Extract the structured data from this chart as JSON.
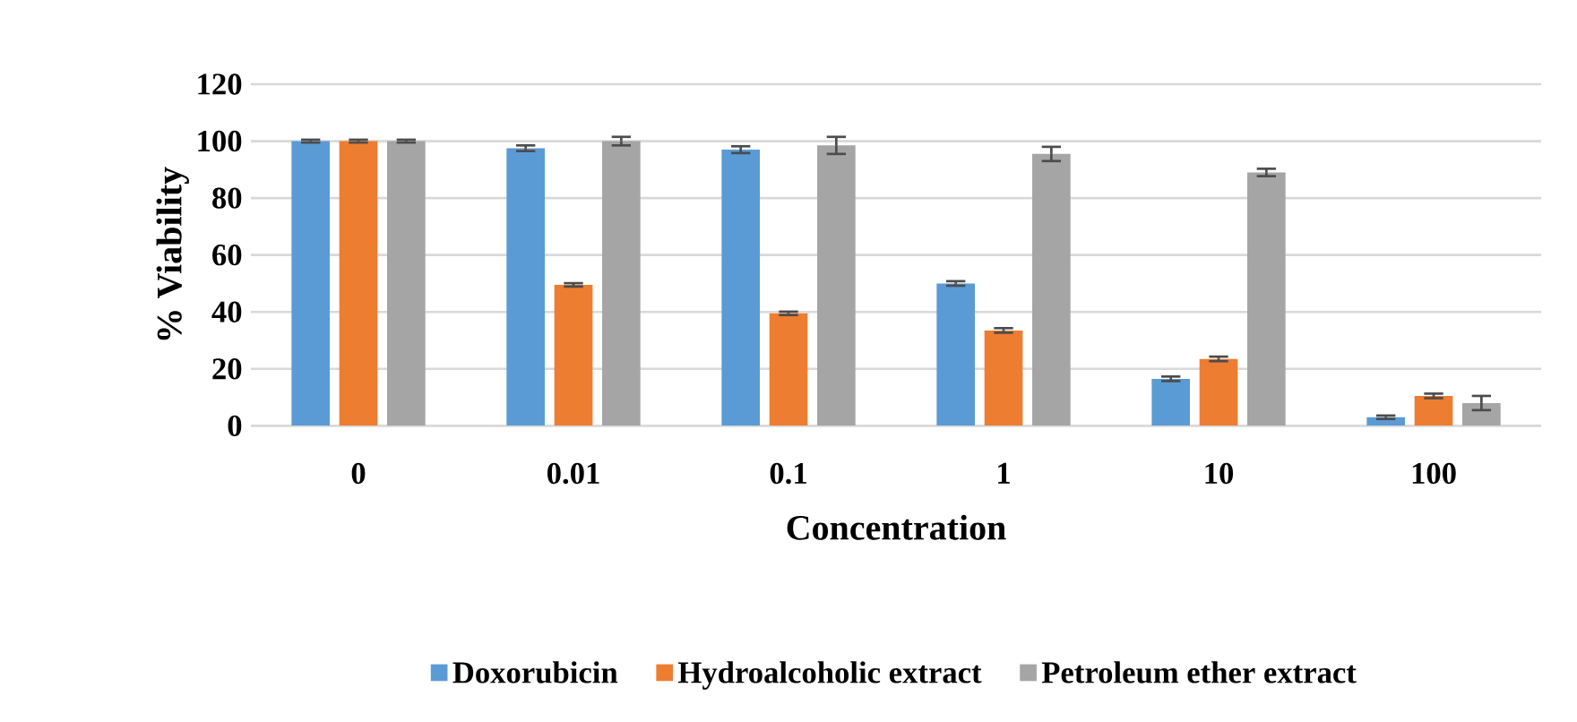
{
  "chart_data": {
    "type": "bar",
    "xlabel": "Concentration",
    "ylabel": "% Viability",
    "categories": [
      "0",
      "0.01",
      "0.1",
      "1",
      "10",
      "100"
    ],
    "series": [
      {
        "name": "Doxorubicin",
        "color": "#5b9bd5",
        "values": [
          100,
          97.5,
          97,
          50,
          16.5,
          3
        ],
        "errors": [
          0.5,
          1,
          1.2,
          0.8,
          0.8,
          0.6
        ]
      },
      {
        "name": "Hydroalcoholic extract",
        "color": "#ed7d31",
        "values": [
          100,
          49.5,
          39.5,
          33.5,
          23.5,
          10.5
        ],
        "errors": [
          0.5,
          0.6,
          0.6,
          0.8,
          0.8,
          0.8
        ]
      },
      {
        "name": "Petroleum ether extract",
        "color": "#a5a5a5",
        "values": [
          100,
          100,
          98.5,
          95.5,
          89,
          8
        ],
        "errors": [
          0.5,
          1.5,
          3,
          2.5,
          1.3,
          2.5
        ]
      }
    ],
    "ylim": [
      0,
      120
    ],
    "yticks": [
      0,
      20,
      40,
      60,
      80,
      100,
      120
    ],
    "grid": "y",
    "legend": "bottom"
  }
}
